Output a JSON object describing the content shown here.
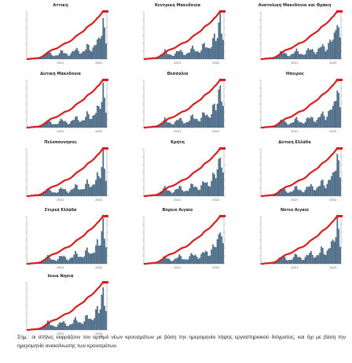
{
  "chart_data": {
    "type": "bar",
    "note": "Σημ.: οι στήλες εκφράζουν τον αριθμό νέων κρουσμάτων με βάση την ημερομηνία λήψης εργαστηριακού δείγματος, και όχι με βάση την ημερομηνία ανακοίνωσης των κρουσμάτων.",
    "note_lines": [
      "Σημ.: οι στήλες εκφράζουν τον αριθμό νέων κρουσμάτων με βάση την ημερομηνία λήψης εργαστηριακού δείγματος, και όχι με βάση την",
      "ημερομηνία ανακοίνωσης των κρουσμάτων."
    ],
    "x_ticks": [
      "2021",
      "2022"
    ],
    "colors": {
      "bars": "#4a6a86",
      "line": "#d61e1e",
      "axis": "#888888",
      "label": "#d61e1e"
    },
    "panels": [
      {
        "title": "Αττική"
      },
      {
        "title": "Κεντρική Μακεδονία"
      },
      {
        "title": "Ανατολική Μακεδονία και Θράκη"
      },
      {
        "title": "Δυτική Μακεδονία"
      },
      {
        "title": "Θεσσαλία"
      },
      {
        "title": "Ήπειρος"
      },
      {
        "title": "Πελοπόννησος"
      },
      {
        "title": "Κρήτη"
      },
      {
        "title": "Δυτική Ελλάδα"
      },
      {
        "title": "Στερεά Ελλάδα"
      },
      {
        "title": "Βόρειο Αιγαίο"
      },
      {
        "title": "Νότιο Αιγαίο"
      },
      {
        "title": "Ιόνια Νησιά"
      }
    ],
    "bar_profile": [
      0.0,
      0.0,
      0.01,
      0.01,
      0.01,
      0.02,
      0.01,
      0.01,
      0.02,
      0.03,
      0.05,
      0.08,
      0.12,
      0.16,
      0.2,
      0.18,
      0.14,
      0.11,
      0.09,
      0.08,
      0.09,
      0.12,
      0.16,
      0.2,
      0.22,
      0.19,
      0.15,
      0.12,
      0.1,
      0.11,
      0.14,
      0.19,
      0.24,
      0.27,
      0.25,
      0.21,
      0.17,
      0.15,
      0.17,
      0.22,
      0.3,
      0.36,
      0.33,
      0.27,
      0.22,
      0.26,
      0.34,
      0.45,
      0.52,
      0.48,
      0.55,
      0.74,
      1.0,
      0.72,
      0.46
    ],
    "line_profile": [
      0.0,
      0.0,
      0.0,
      0.01,
      0.01,
      0.01,
      0.02,
      0.02,
      0.02,
      0.03,
      0.04,
      0.06,
      0.08,
      0.1,
      0.13,
      0.15,
      0.17,
      0.19,
      0.2,
      0.21,
      0.22,
      0.23,
      0.25,
      0.27,
      0.29,
      0.31,
      0.33,
      0.34,
      0.35,
      0.36,
      0.38,
      0.4,
      0.43,
      0.46,
      0.49,
      0.51,
      0.53,
      0.55,
      0.57,
      0.59,
      0.62,
      0.66,
      0.69,
      0.71,
      0.73,
      0.75,
      0.78,
      0.81,
      0.85,
      0.88,
      0.91,
      0.95,
      0.99,
      1.0,
      1.0
    ]
  }
}
